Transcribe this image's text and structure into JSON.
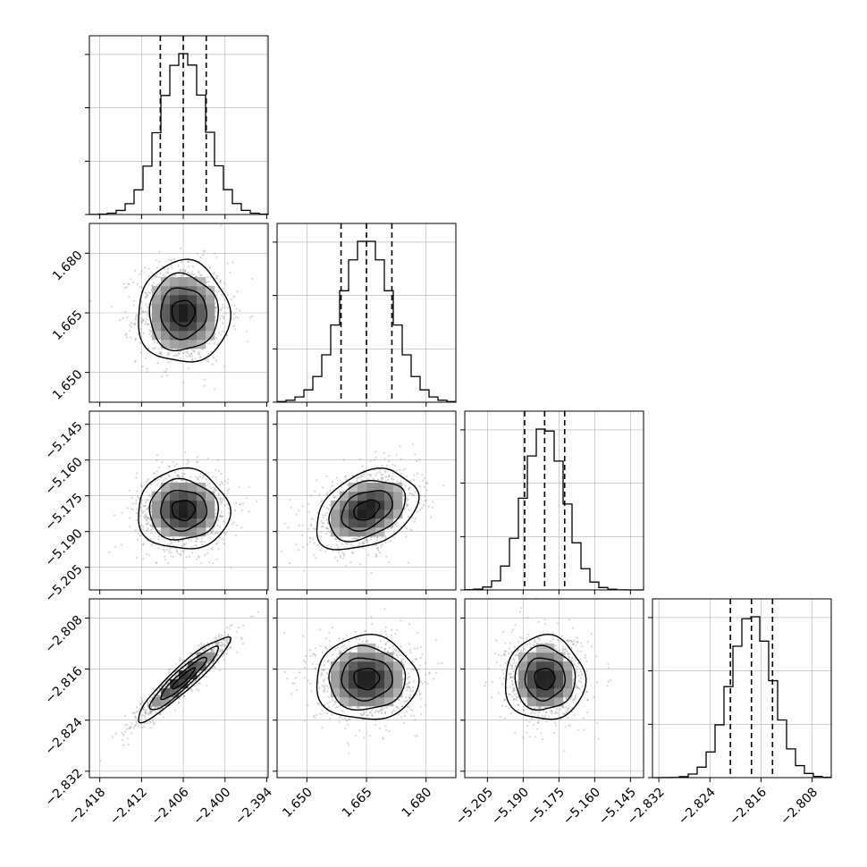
{
  "chart_data": {
    "type": "corner",
    "title": "",
    "parameters": [
      {
        "name": "",
        "center": -2.406,
        "sigma": 0.0033,
        "range": [
          -2.4195,
          -2.3938
        ],
        "ticks": [
          "−2.418",
          "−2.412",
          "−2.406",
          "−2.400",
          "−2.394"
        ],
        "tick_values": [
          -2.418,
          -2.412,
          -2.406,
          -2.4,
          -2.394
        ],
        "quantiles": [
          -2.4093,
          -2.406,
          -2.4027
        ]
      },
      {
        "name": "",
        "center": 1.665,
        "sigma": 0.0064,
        "range": [
          1.6425,
          1.6875
        ],
        "ticks": [
          "1.650",
          "1.665",
          "1.680"
        ],
        "tick_values": [
          1.65,
          1.665,
          1.68
        ],
        "quantiles": [
          1.6586,
          1.665,
          1.6714
        ]
      },
      {
        "name": "",
        "center": -5.181,
        "sigma": 0.0084,
        "range": [
          -5.2145,
          -5.1395
        ],
        "ticks": [
          "−5.145",
          "−5.160",
          "−5.175",
          "−5.190",
          "−5.205"
        ],
        "tick_values": [
          -5.145,
          -5.16,
          -5.175,
          -5.19,
          -5.205
        ],
        "quantiles": [
          -5.1894,
          -5.181,
          -5.1726
        ]
      },
      {
        "name": "",
        "center": -2.8175,
        "sigma": 0.0033,
        "range": [
          -2.833,
          -2.805
        ],
        "ticks": [
          "−2.832",
          "−2.824",
          "−2.816",
          "−2.808"
        ],
        "tick_values": [
          -2.832,
          -2.824,
          -2.816,
          -2.808
        ],
        "quantiles": [
          -2.8208,
          -2.8175,
          -2.8142
        ]
      }
    ],
    "correlations": [
      {
        "pair": [
          0,
          1
        ],
        "rho": 0.0
      },
      {
        "pair": [
          0,
          2
        ],
        "rho": 0.0
      },
      {
        "pair": [
          1,
          2
        ],
        "rho": 0.35
      },
      {
        "pair": [
          0,
          3
        ],
        "rho": 0.93
      },
      {
        "pair": [
          1,
          3
        ],
        "rho": 0.0
      },
      {
        "pair": [
          2,
          3
        ],
        "rho": 0.0
      }
    ],
    "histogram_bins": 20,
    "contour_levels_sigma": [
      0.5,
      1.0,
      1.5,
      2.0
    ],
    "grid": true
  }
}
